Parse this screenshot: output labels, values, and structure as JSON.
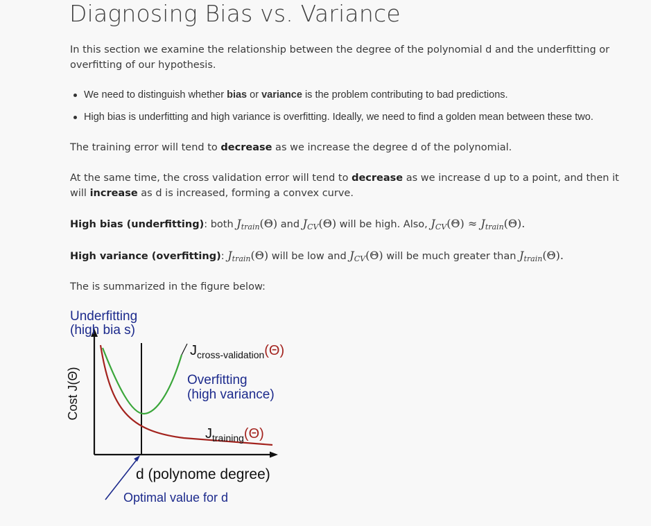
{
  "title": "Diagnosing Bias vs. Variance",
  "intro": "In this section we examine the relationship between the degree of the polynomial d and the underfitting or overfitting of our hypothesis.",
  "bullets": {
    "b1_pre": "We need to distinguish whether ",
    "b1_bold1": "bias",
    "b1_mid": " or ",
    "b1_bold2": "variance",
    "b1_post": " is the problem contributing to bad predictions.",
    "b2": "High bias is underfitting and high variance is overfitting. Ideally, we need to find a golden mean between these two."
  },
  "training_para": {
    "pre": "The training error will tend to ",
    "bold": "decrease",
    "post": " as we increase the degree d of the polynomial."
  },
  "cv_para": {
    "pre": "At the same time, the cross validation error will tend to ",
    "bold1": "decrease",
    "mid": " as we increase d up to a point, and then it will ",
    "bold2": "increase",
    "post": " as d is increased, forming a convex curve."
  },
  "high_bias": {
    "label": "High bias (underfitting)",
    "t1": ": both ",
    "t2": " and ",
    "t3": " will be high. Also, "
  },
  "high_variance": {
    "label": "High variance (overfitting)",
    "t1": ": ",
    "t2": " will be low and ",
    "t3": " will be much greater than "
  },
  "math": {
    "J": "J",
    "train": "train",
    "cv": "CV",
    "theta": "(Θ)",
    "approx": "≈",
    "dot": "."
  },
  "summary": "The is summarized in the figure below:",
  "figure": {
    "underfit_line1": "Underfitting",
    "underfit_line2": "(high bia s)",
    "jcv_J": "J",
    "jcv_sub": "cross-validation",
    "jcv_theta": "(Θ)",
    "overfit_line1": "Overfitting",
    "overfit_line2": "(high variance)",
    "jtr_J": "J",
    "jtr_sub": "training",
    "jtr_theta": "(Θ)",
    "ylabel": "Cost J(Θ)",
    "xlabel": "d (polynome degree)",
    "optimal": "Optimal value for d",
    "colors": {
      "navy": "#1c2a8c",
      "cv_curve": "#3aa63a",
      "train_curve": "#a3231e",
      "axis": "#111111"
    }
  }
}
